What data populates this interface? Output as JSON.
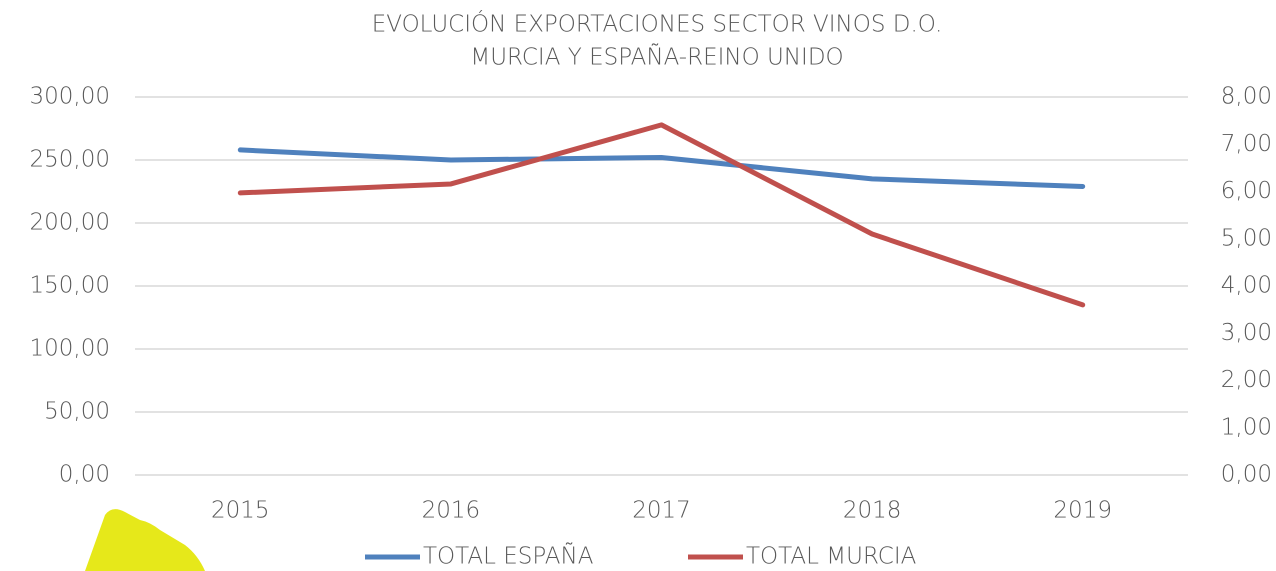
{
  "chart_data": {
    "type": "line",
    "title": [
      "EVOLUCIÓN EXPORTACIONES SECTOR VINOS D.O.",
      "MURCIA Y ESPAÑA-REINO UNIDO"
    ],
    "categories": [
      "2015",
      "2016",
      "2017",
      "2018",
      "2019"
    ],
    "series": [
      {
        "name": "TOTAL ESPAÑA",
        "color": "#4f81bd",
        "values": [
          258,
          250,
          252,
          235,
          229
        ]
      },
      {
        "name": "TOTAL MURCIA",
        "color": "#c0504d",
        "axis": "y2",
        "values": [
          5.97,
          6.16,
          7.41,
          5.1,
          3.6
        ]
      }
    ],
    "ylim": [
      0,
      300
    ],
    "yticks": [
      {
        "value": 0,
        "label": "0,00"
      },
      {
        "value": 50,
        "label": "50,00"
      },
      {
        "value": 100,
        "label": "100,00"
      },
      {
        "value": 150,
        "label": "150,00"
      },
      {
        "value": 200,
        "label": "200,00"
      },
      {
        "value": 250,
        "label": "250,00"
      },
      {
        "value": 300,
        "label": "300,00"
      }
    ],
    "y2lim": [
      0,
      8
    ],
    "y2ticks": [
      {
        "value": 0,
        "label": "0,00"
      },
      {
        "value": 1,
        "label": "1,00"
      },
      {
        "value": 2,
        "label": "2,00"
      },
      {
        "value": 3,
        "label": "3,00"
      },
      {
        "value": 4,
        "label": "4,00"
      },
      {
        "value": 5,
        "label": "5,00"
      },
      {
        "value": 6,
        "label": "6,00"
      },
      {
        "value": 7,
        "label": "7,00"
      },
      {
        "value": 8,
        "label": "8,00"
      }
    ],
    "grid": true,
    "legend": "bottom"
  }
}
